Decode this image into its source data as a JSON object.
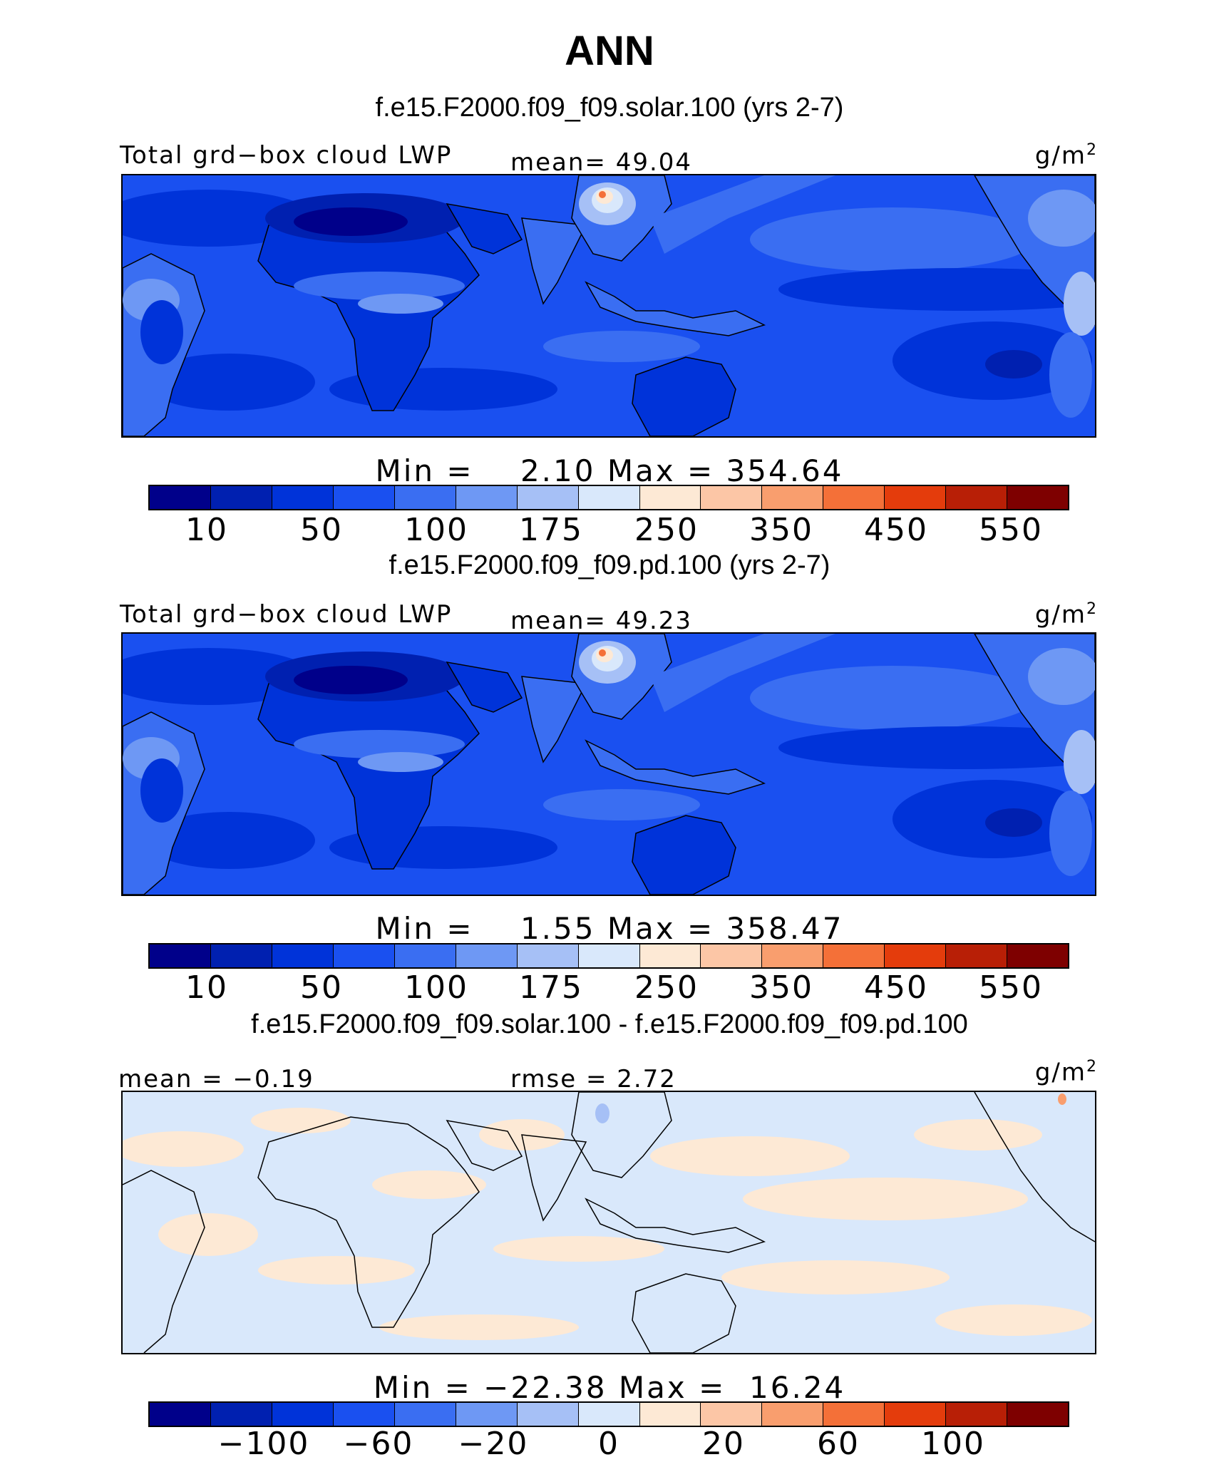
{
  "figure": {
    "title": "ANN"
  },
  "colors": {
    "scale": [
      "#00008a",
      "#0020b0",
      "#0033d9",
      "#1a50f0",
      "#3a6ef2",
      "#6e98f4",
      "#a6c0f6",
      "#d9e8fb",
      "#fde9d5",
      "#fcc6a6",
      "#f99e6e",
      "#f47038",
      "#e43c0c",
      "#b81f06",
      "#7e0000"
    ],
    "land_outline": "#000000"
  },
  "panels": [
    {
      "subtitle": "f.e15.F2000.f09_f09.solar.100 (yrs 2-7)",
      "left_label": "Total grd−box cloud LWP",
      "center_label": "mean=  49.04",
      "units_base": "g/m",
      "units_sup": "2",
      "min_max": "Min =    2.10 Max = 354.64",
      "tick_labels": [
        "10",
        "50",
        "100",
        "175",
        "250",
        "350",
        "450",
        "550"
      ],
      "map_kind": "field"
    },
    {
      "subtitle": "f.e15.F2000.f09_f09.pd.100 (yrs 2-7)",
      "left_label": "Total grd−box cloud LWP",
      "center_label": "mean=  49.23",
      "units_base": "g/m",
      "units_sup": "2",
      "min_max": "Min =    1.55 Max = 358.47",
      "tick_labels": [
        "10",
        "50",
        "100",
        "175",
        "250",
        "350",
        "450",
        "550"
      ],
      "map_kind": "field"
    },
    {
      "subtitle": "f.e15.F2000.f09_f09.solar.100 - f.e15.F2000.f09_f09.pd.100",
      "left_label": "mean =  −0.19",
      "center_label": "rmse =   2.72",
      "units_base": "g/m",
      "units_sup": "2",
      "min_max": "Min = −22.38 Max =  16.24",
      "tick_labels": [
        "−100",
        "−60",
        "−20",
        "0",
        "20",
        "60",
        "100"
      ],
      "map_kind": "difference"
    }
  ]
}
